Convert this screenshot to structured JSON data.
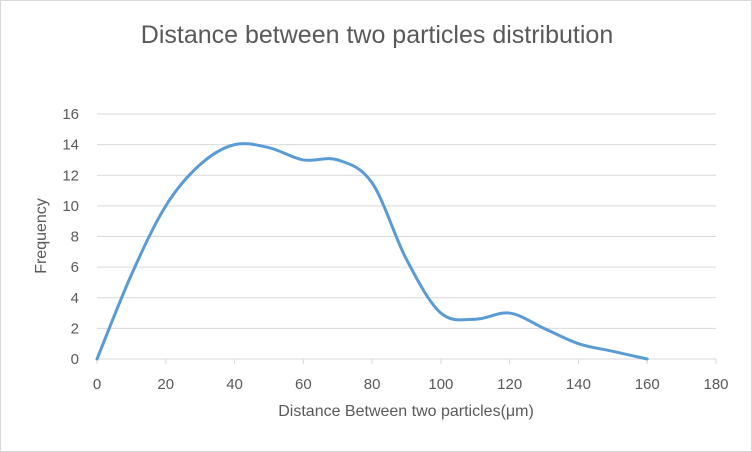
{
  "chart_data": {
    "type": "line",
    "title": "Distance between two particles distribution",
    "xlabel": "Distance Between two particles(μm)",
    "ylabel": "Frequency",
    "xlim": [
      0,
      180
    ],
    "ylim": [
      0,
      16
    ],
    "xticks": [
      0,
      20,
      40,
      60,
      80,
      100,
      120,
      140,
      160,
      180
    ],
    "yticks": [
      0,
      2,
      4,
      6,
      8,
      10,
      12,
      14,
      16
    ],
    "grid": "horizontal",
    "legend": "none",
    "smooth": true,
    "series": [
      {
        "color": "#5b9bd5",
        "x": [
          0,
          10,
          20,
          30,
          40,
          50,
          60,
          70,
          80,
          90,
          100,
          110,
          120,
          130,
          140,
          150,
          160
        ],
        "y": [
          0,
          5.5,
          10,
          12.7,
          14,
          13.8,
          13,
          13,
          11.5,
          6.5,
          3,
          2.6,
          3,
          2,
          1,
          0.5,
          0
        ]
      }
    ]
  }
}
